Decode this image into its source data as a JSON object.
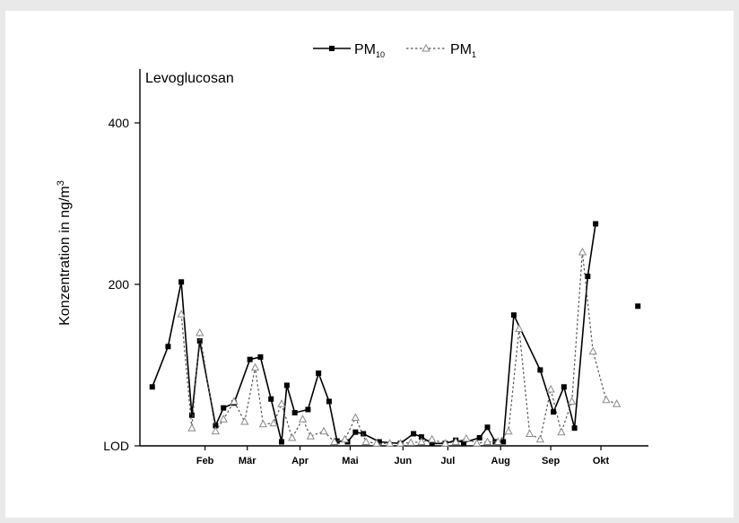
{
  "chart_data": {
    "type": "line",
    "title": "Levoglucosan",
    "ylabel": "Konzentration in ng/m",
    "ylabel_sup": "3",
    "ylim": [
      0,
      450
    ],
    "yticks": [
      {
        "value": 0,
        "label": "LOD"
      },
      {
        "value": 200,
        "label": "200"
      },
      {
        "value": 400,
        "label": "400"
      }
    ],
    "months": [
      {
        "label": "Feb",
        "x": 1.2
      },
      {
        "label": "Mär",
        "x": 2.0
      },
      {
        "label": "Apr",
        "x": 3.0
      },
      {
        "label": "Mai",
        "x": 3.95
      },
      {
        "label": "Jun",
        "x": 4.95
      },
      {
        "label": "Jul",
        "x": 5.8
      },
      {
        "label": "Aug",
        "x": 6.8
      },
      {
        "label": "Sep",
        "x": 7.75
      },
      {
        "label": "Okt",
        "x": 8.7
      }
    ],
    "xlim": [
      0,
      9.6
    ],
    "legend_position": "top-center",
    "series": [
      {
        "name": "PM",
        "name_sub": "10",
        "marker": "square",
        "line": "solid",
        "color": "#000000",
        "x": [
          0.2,
          0.5,
          0.75,
          0.95,
          1.1,
          1.4,
          1.55,
          1.75,
          2.05,
          2.25,
          2.45,
          2.65,
          2.75,
          2.9,
          3.15,
          3.35,
          3.55,
          3.7,
          3.9,
          4.05,
          4.2,
          4.5,
          4.9,
          5.15,
          5.3,
          5.5,
          5.75,
          5.95,
          6.1,
          6.4,
          6.55,
          6.7,
          6.85,
          7.05,
          7.55,
          7.8,
          8.0,
          8.2,
          8.45,
          8.6,
          8.8,
          9.4
        ],
        "y": [
          73,
          123,
          203,
          38,
          130,
          25,
          47,
          53,
          107,
          110,
          58,
          5,
          75,
          41,
          45,
          90,
          55,
          6,
          5,
          17,
          15,
          5,
          3,
          15,
          11,
          3,
          3,
          7,
          4,
          10,
          23,
          5,
          5,
          162,
          94,
          42,
          73,
          22,
          210,
          275,
          null,
          173
        ]
      },
      {
        "name": "PM",
        "name_sub": "1",
        "marker": "triangle",
        "line": "dashed",
        "color": "#8a8a8a",
        "x": [
          0.75,
          0.95,
          1.1,
          1.4,
          1.55,
          1.75,
          1.95,
          2.15,
          2.3,
          2.5,
          2.65,
          2.85,
          3.05,
          3.2,
          3.45,
          3.65,
          3.85,
          4.05,
          4.25,
          4.45,
          4.7,
          4.9,
          5.1,
          5.3,
          5.5,
          5.75,
          5.95,
          6.15,
          6.35,
          6.55,
          6.75,
          6.95,
          7.15,
          7.35,
          7.55,
          7.75,
          7.95,
          8.15,
          8.35,
          8.55,
          8.8,
          9.0,
          9.2,
          9.4
        ],
        "y": [
          163,
          22,
          140,
          18,
          33,
          55,
          30,
          97,
          27,
          28,
          52,
          10,
          33,
          12,
          18,
          5,
          8,
          35,
          5,
          3,
          3,
          3,
          4,
          5,
          8,
          3,
          5,
          9,
          3,
          5,
          5,
          18,
          145,
          15,
          8,
          70,
          17,
          55,
          240,
          117,
          57,
          52,
          null,
          null
        ]
      }
    ]
  }
}
